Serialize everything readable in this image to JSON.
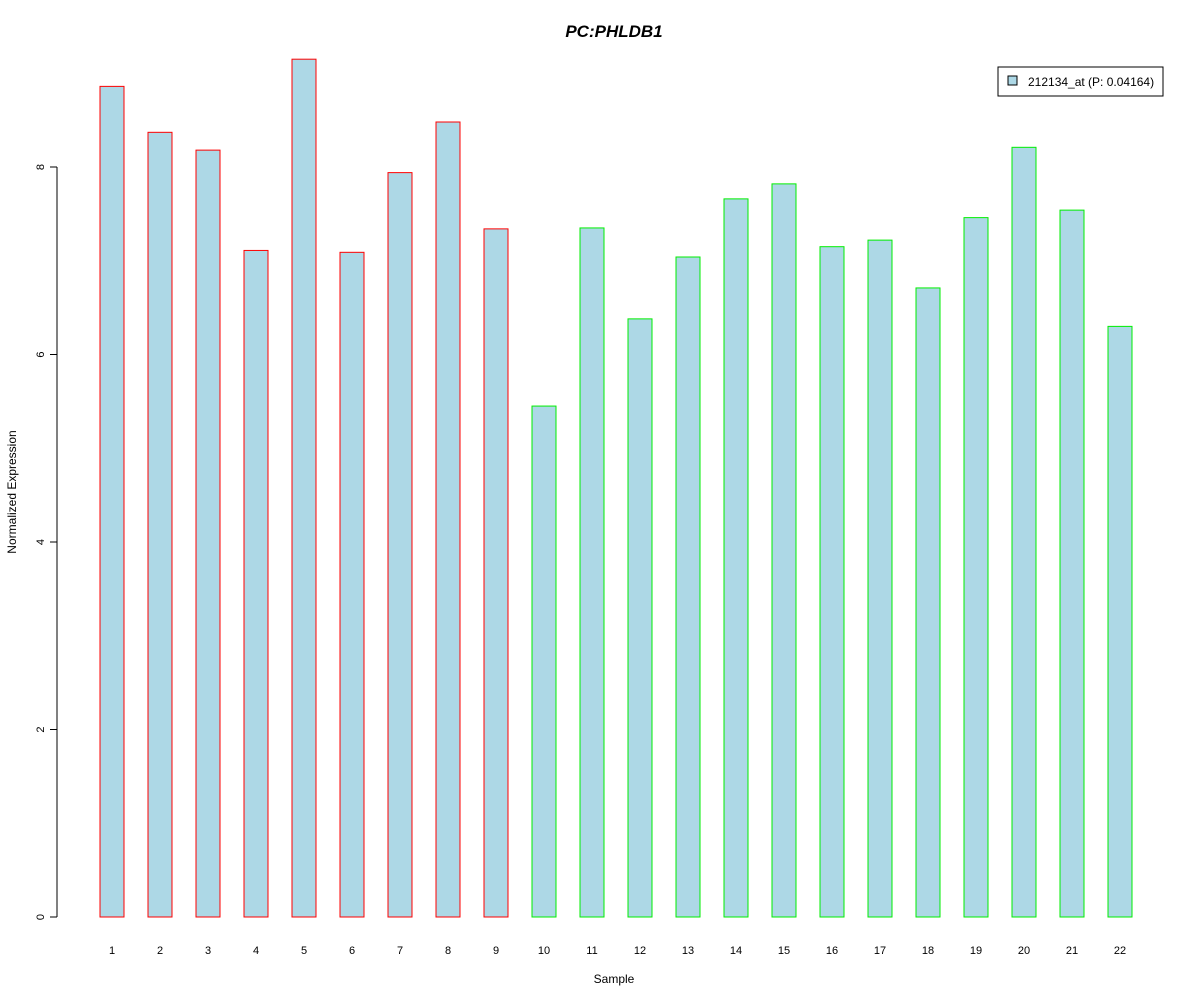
{
  "chart_data": {
    "type": "bar",
    "title": "PC:PHLDB1",
    "xlabel": "Sample",
    "ylabel": "Normalized Expression",
    "categories": [
      "1",
      "2",
      "3",
      "4",
      "5",
      "6",
      "7",
      "8",
      "9",
      "10",
      "11",
      "12",
      "13",
      "14",
      "15",
      "16",
      "17",
      "18",
      "19",
      "20",
      "21",
      "22"
    ],
    "series": [
      {
        "name": "212134_at (P: 0.04164)",
        "values": [
          8.86,
          8.37,
          8.18,
          7.11,
          9.15,
          7.09,
          7.94,
          8.48,
          7.34,
          5.45,
          7.35,
          6.38,
          7.04,
          7.66,
          7.82,
          7.15,
          7.22,
          6.71,
          7.46,
          8.21,
          7.54,
          6.3
        ]
      }
    ],
    "group_border": [
      "red",
      "red",
      "red",
      "red",
      "red",
      "red",
      "red",
      "red",
      "red",
      "green",
      "green",
      "green",
      "green",
      "green",
      "green",
      "green",
      "green",
      "green",
      "green",
      "green",
      "green",
      "green"
    ],
    "yticks": [
      0,
      2,
      4,
      6,
      8
    ],
    "ylim": [
      0,
      9.15
    ],
    "legend_position": "top-right",
    "grid": false,
    "colors": {
      "title": "#0000cc",
      "bar_fill": "#add8e6",
      "red": "#ff0000",
      "green": "#00ee00",
      "axis": "#000000"
    }
  }
}
